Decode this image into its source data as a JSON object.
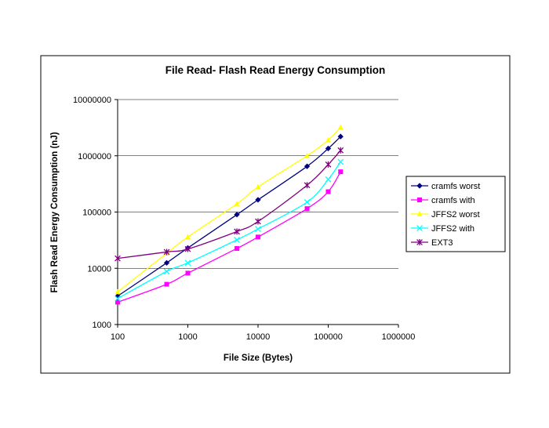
{
  "chart_data": {
    "type": "line",
    "title": "File Read- Flash Read Energy Consumption",
    "xlabel": "File Size (Bytes)",
    "ylabel": "Flash Read Energy Consumption (nJ)",
    "x_scale": "log",
    "y_scale": "log",
    "xlim": [
      100,
      1000000
    ],
    "ylim": [
      1000,
      10000000
    ],
    "x_ticks": [
      "100",
      "1000",
      "10000",
      "100000",
      "1000000"
    ],
    "y_ticks": [
      "1000",
      "10000",
      "100000",
      "1000000",
      "10000000"
    ],
    "grid": "horizontal major",
    "legend_position": "right",
    "x": [
      100,
      500,
      1000,
      5000,
      10000,
      50000,
      100000,
      150000
    ],
    "series": [
      {
        "name": "cramfs worst",
        "color": "#000080",
        "marker": "diamond",
        "values": [
          3200,
          12500,
          23000,
          90000,
          165000,
          650000,
          1350000,
          2200000
        ]
      },
      {
        "name": "cramfs with",
        "color": "#ff00ff",
        "marker": "square",
        "values": [
          2500,
          5200,
          8200,
          22500,
          36000,
          115000,
          230000,
          520000
        ]
      },
      {
        "name": "JFFS2 worst",
        "color": "#ffff00",
        "marker": "triangle",
        "values": [
          3800,
          18500,
          36000,
          140000,
          280000,
          1000000,
          1900000,
          3200000
        ]
      },
      {
        "name": "JFFS2 with",
        "color": "#00ffff",
        "marker": "x",
        "values": [
          2900,
          8800,
          12500,
          32000,
          50000,
          150000,
          380000,
          780000
        ]
      },
      {
        "name": "EXT3",
        "color": "#800080",
        "marker": "star",
        "values": [
          15000,
          19500,
          22000,
          45000,
          68000,
          300000,
          700000,
          1250000
        ]
      }
    ]
  }
}
